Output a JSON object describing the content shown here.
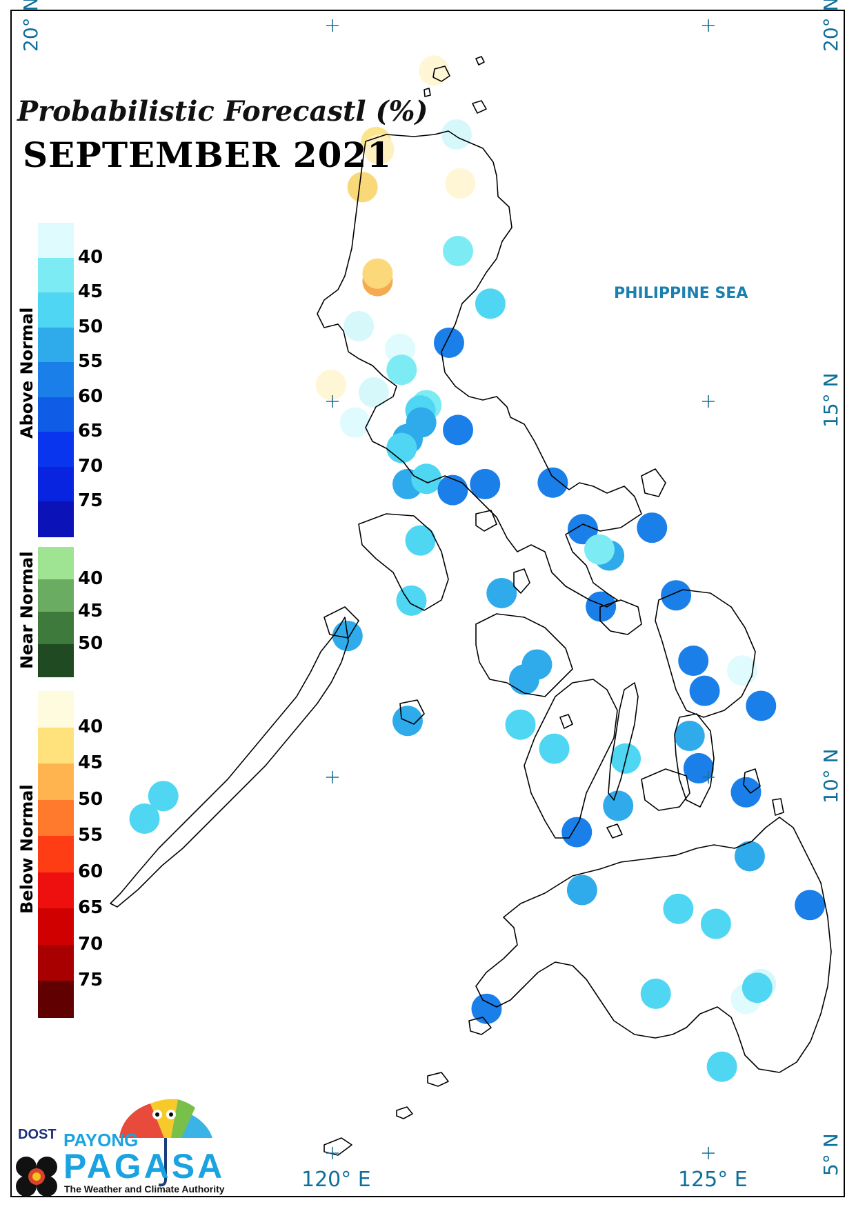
{
  "title": "Probabilistic Forecastl (%)",
  "subtitle": "SEPTEMBER 2021",
  "sea_label": "PHILIPPINE SEA",
  "lat_labels": [
    "20° N",
    "15° N",
    "10° N",
    "5° N"
  ],
  "lon_labels": [
    "120° E",
    "125° E"
  ],
  "legend": {
    "above_normal": {
      "label": "Above Normal",
      "colors": [
        "#dffbfd",
        "#7debf4",
        "#4fd6f2",
        "#2fabec",
        "#1a7fe8",
        "#0f5ce6",
        "#0a35ef",
        "#0824e0",
        "#0a12b8"
      ],
      "ticks": [
        "40",
        "45",
        "50",
        "55",
        "60",
        "65",
        "70",
        "75"
      ]
    },
    "near_normal": {
      "label": "Near Normal",
      "colors": [
        "#9ee493",
        "#6aad62",
        "#3e7a3c",
        "#1f4a22"
      ],
      "ticks": [
        "40",
        "45",
        "50"
      ]
    },
    "below_normal": {
      "label": "Below Normal",
      "colors": [
        "#fffbdf",
        "#ffe27c",
        "#ffb44f",
        "#ff7a2c",
        "#ff3d15",
        "#ee0f0f",
        "#d00000",
        "#a80000",
        "#600000"
      ],
      "ticks": [
        "40",
        "45",
        "50",
        "55",
        "60",
        "65",
        "70",
        "75"
      ]
    }
  },
  "stations": [
    {
      "lon": 121.35,
      "lat": 19.4,
      "cat": "below",
      "c": "#fff6d6"
    },
    {
      "lon": 121.65,
      "lat": 18.55,
      "cat": "above",
      "c": "#d6f8fb"
    },
    {
      "lon": 120.58,
      "lat": 18.45,
      "cat": "below",
      "c": "#fbe48a"
    },
    {
      "lon": 120.62,
      "lat": 18.35,
      "cat": "below",
      "c": "#fff0c0"
    },
    {
      "lon": 120.4,
      "lat": 17.85,
      "cat": "below",
      "c": "#f8d879"
    },
    {
      "lon": 121.7,
      "lat": 17.9,
      "cat": "below",
      "c": "#fff6d6"
    },
    {
      "lon": 121.67,
      "lat": 17.0,
      "cat": "above",
      "c": "#7debf4"
    },
    {
      "lon": 120.6,
      "lat": 16.6,
      "cat": "below",
      "c": "#f5a950"
    },
    {
      "lon": 120.6,
      "lat": 16.7,
      "cat": "below",
      "c": "#fbd87a"
    },
    {
      "lon": 122.1,
      "lat": 16.3,
      "cat": "above",
      "c": "#4fd6f2"
    },
    {
      "lon": 120.35,
      "lat": 16.0,
      "cat": "above",
      "c": "#d6f8fb"
    },
    {
      "lon": 120.9,
      "lat": 15.7,
      "cat": "above",
      "c": "#dffbfd"
    },
    {
      "lon": 121.55,
      "lat": 15.78,
      "cat": "above",
      "c": "#1a7fe8"
    },
    {
      "lon": 120.92,
      "lat": 15.42,
      "cat": "above",
      "c": "#7debf4"
    },
    {
      "lon": 119.98,
      "lat": 15.22,
      "cat": "below",
      "c": "#fff6d6"
    },
    {
      "lon": 120.55,
      "lat": 15.12,
      "cat": "above",
      "c": "#d6f8fb"
    },
    {
      "lon": 121.25,
      "lat": 14.95,
      "cat": "above",
      "c": "#7debf4"
    },
    {
      "lon": 121.17,
      "lat": 14.88,
      "cat": "above",
      "c": "#4fd6f2"
    },
    {
      "lon": 120.3,
      "lat": 14.72,
      "cat": "above",
      "c": "#dffbfd"
    },
    {
      "lon": 121.18,
      "lat": 14.72,
      "cat": "above",
      "c": "#2fabec"
    },
    {
      "lon": 121.67,
      "lat": 14.62,
      "cat": "above",
      "c": "#1a7fe8"
    },
    {
      "lon": 121.0,
      "lat": 14.5,
      "cat": "above",
      "c": "#2fabec"
    },
    {
      "lon": 120.92,
      "lat": 14.38,
      "cat": "above",
      "c": "#4fd6f2"
    },
    {
      "lon": 121.0,
      "lat": 13.9,
      "cat": "above",
      "c": "#2fabec"
    },
    {
      "lon": 121.25,
      "lat": 13.97,
      "cat": "above",
      "c": "#4fd6f2"
    },
    {
      "lon": 121.6,
      "lat": 13.82,
      "cat": "above",
      "c": "#1a7fe8"
    },
    {
      "lon": 122.03,
      "lat": 13.9,
      "cat": "above",
      "c": "#1a7fe8"
    },
    {
      "lon": 122.93,
      "lat": 13.92,
      "cat": "above",
      "c": "#1a7fe8"
    },
    {
      "lon": 123.33,
      "lat": 13.3,
      "cat": "above",
      "c": "#1a7fe8"
    },
    {
      "lon": 124.25,
      "lat": 13.32,
      "cat": "above",
      "c": "#1a7fe8"
    },
    {
      "lon": 123.68,
      "lat": 12.95,
      "cat": "above",
      "c": "#2fabec"
    },
    {
      "lon": 123.55,
      "lat": 13.03,
      "cat": "above",
      "c": "#7debf4"
    },
    {
      "lon": 121.17,
      "lat": 13.15,
      "cat": "above",
      "c": "#4fd6f2"
    },
    {
      "lon": 122.25,
      "lat": 12.45,
      "cat": "above",
      "c": "#2fabec"
    },
    {
      "lon": 123.57,
      "lat": 12.27,
      "cat": "above",
      "c": "#1a7fe8"
    },
    {
      "lon": 124.57,
      "lat": 12.42,
      "cat": "above",
      "c": "#1a7fe8"
    },
    {
      "lon": 121.05,
      "lat": 12.35,
      "cat": "above",
      "c": "#4fd6f2"
    },
    {
      "lon": 120.2,
      "lat": 11.88,
      "cat": "above",
      "c": "#2fabec"
    },
    {
      "lon": 124.8,
      "lat": 11.55,
      "cat": "above",
      "c": "#1a7fe8"
    },
    {
      "lon": 125.45,
      "lat": 11.42,
      "cat": "above",
      "c": "#dffbfd"
    },
    {
      "lon": 122.72,
      "lat": 11.5,
      "cat": "above",
      "c": "#2fabec"
    },
    {
      "lon": 122.55,
      "lat": 11.3,
      "cat": "above",
      "c": "#2fabec"
    },
    {
      "lon": 124.95,
      "lat": 11.15,
      "cat": "above",
      "c": "#1a7fe8"
    },
    {
      "lon": 125.7,
      "lat": 10.95,
      "cat": "above",
      "c": "#1a7fe8"
    },
    {
      "lon": 121.0,
      "lat": 10.75,
      "cat": "above",
      "c": "#2fabec"
    },
    {
      "lon": 122.5,
      "lat": 10.7,
      "cat": "above",
      "c": "#4fd6f2"
    },
    {
      "lon": 124.75,
      "lat": 10.55,
      "cat": "above",
      "c": "#2fabec"
    },
    {
      "lon": 122.95,
      "lat": 10.38,
      "cat": "above",
      "c": "#4fd6f2"
    },
    {
      "lon": 123.9,
      "lat": 10.25,
      "cat": "above",
      "c": "#4fd6f2"
    },
    {
      "lon": 124.87,
      "lat": 10.12,
      "cat": "above",
      "c": "#1a7fe8"
    },
    {
      "lon": 125.5,
      "lat": 9.8,
      "cat": "above",
      "c": "#1a7fe8"
    },
    {
      "lon": 117.75,
      "lat": 9.75,
      "cat": "above",
      "c": "#4fd6f2"
    },
    {
      "lon": 117.5,
      "lat": 9.45,
      "cat": "above",
      "c": "#4fd6f2"
    },
    {
      "lon": 123.8,
      "lat": 9.62,
      "cat": "above",
      "c": "#2fabec"
    },
    {
      "lon": 123.25,
      "lat": 9.27,
      "cat": "above",
      "c": "#1a7fe8"
    },
    {
      "lon": 125.55,
      "lat": 8.95,
      "cat": "above",
      "c": "#2fabec"
    },
    {
      "lon": 123.32,
      "lat": 8.5,
      "cat": "above",
      "c": "#2fabec"
    },
    {
      "lon": 124.6,
      "lat": 8.25,
      "cat": "above",
      "c": "#4fd6f2"
    },
    {
      "lon": 125.1,
      "lat": 8.05,
      "cat": "above",
      "c": "#4fd6f2"
    },
    {
      "lon": 126.35,
      "lat": 8.3,
      "cat": "above",
      "c": "#1a7fe8"
    },
    {
      "lon": 124.3,
      "lat": 7.12,
      "cat": "above",
      "c": "#4fd6f2"
    },
    {
      "lon": 125.7,
      "lat": 7.25,
      "cat": "above",
      "c": "#d6f8fb"
    },
    {
      "lon": 125.5,
      "lat": 7.05,
      "cat": "above",
      "c": "#dffbfd"
    },
    {
      "lon": 125.65,
      "lat": 7.2,
      "cat": "above",
      "c": "#4fd6f2"
    },
    {
      "lon": 122.05,
      "lat": 6.92,
      "cat": "above",
      "c": "#1a7fe8"
    },
    {
      "lon": 125.18,
      "lat": 6.15,
      "cat": "above",
      "c": "#4fd6f2"
    }
  ],
  "logo": {
    "dost": "DOST",
    "payong": "PAYONG",
    "pagasa": "PAGASA",
    "tagline": "The Weather and Climate Authority"
  }
}
